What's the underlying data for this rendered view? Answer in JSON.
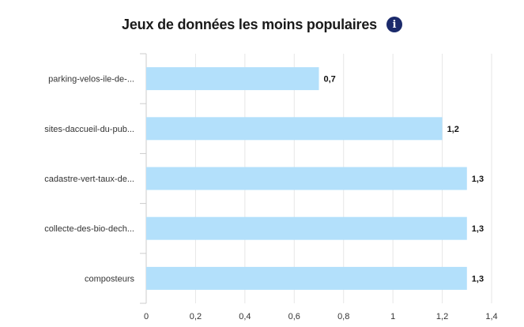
{
  "header": {
    "title": "Jeux de données les moins populaires",
    "info_icon": "info-icon"
  },
  "chart_data": {
    "type": "bar",
    "orientation": "horizontal",
    "categories": [
      "parking-velos-ile-de-...",
      "sites-daccueil-du-pub...",
      "cadastre-vert-taux-de...",
      "collecte-des-bio-dech...",
      "composteurs"
    ],
    "values": [
      0.7,
      1.2,
      1.3,
      1.3,
      1.3
    ],
    "data_labels": [
      "0,7",
      "1,2",
      "1,3",
      "1,3",
      "1,3"
    ],
    "x_ticks": [
      "0",
      "0,2",
      "0,4",
      "0,6",
      "0,8",
      "1",
      "1,2",
      "1,4"
    ],
    "xlim": [
      0,
      1.4
    ],
    "grid": true,
    "bar_color": "#b3e0fb",
    "grid_color": "#e6e6e6"
  }
}
